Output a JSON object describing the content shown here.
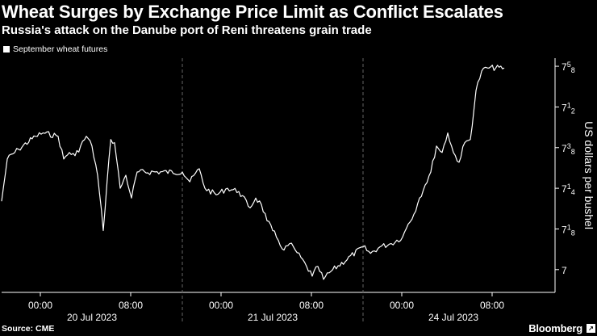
{
  "header": {
    "title": "Wheat Surges by Exchange Price Limit as Conflict Escalates",
    "subtitle": "Russia's attack on the Danube port of Reni threatens grain trade"
  },
  "footer": {
    "source": "Source: CME",
    "brand": "Bloomberg"
  },
  "chart_data": {
    "type": "line",
    "series": [
      {
        "name": "September wheat futures",
        "points": [
          [
            "20 Jul 00:00",
            7.21
          ],
          [
            "20 Jul 00:30",
            7.34
          ],
          [
            "20 Jul 01:30",
            7.37
          ],
          [
            "20 Jul 03:00",
            7.41
          ],
          [
            "20 Jul 03:40",
            7.42
          ],
          [
            "20 Jul 05:00",
            7.41
          ],
          [
            "20 Jul 05:30",
            7.34
          ],
          [
            "20 Jul 06:00",
            7.36
          ],
          [
            "20 Jul 06:30",
            7.35
          ],
          [
            "20 Jul 07:30",
            7.41
          ],
          [
            "20 Jul 08:00",
            7.38
          ],
          [
            "20 Jul 08:30",
            7.29
          ],
          [
            "20 Jul 09:00",
            7.12
          ],
          [
            "20 Jul 09:20",
            7.27
          ],
          [
            "20 Jul 09:40",
            7.4
          ],
          [
            "20 Jul 10:00",
            7.39
          ],
          [
            "20 Jul 10:30",
            7.25
          ],
          [
            "20 Jul 11:00",
            7.29
          ],
          [
            "20 Jul 11:30",
            7.22
          ],
          [
            "20 Jul 12:00",
            7.3
          ],
          [
            "21 Jul 00:00",
            7.3
          ],
          [
            "21 Jul 00:40",
            7.27
          ],
          [
            "21 Jul 01:30",
            7.31
          ],
          [
            "21 Jul 02:00",
            7.25
          ],
          [
            "21 Jul 03:00",
            7.23
          ],
          [
            "21 Jul 04:00",
            7.25
          ],
          [
            "21 Jul 05:00",
            7.24
          ],
          [
            "21 Jul 06:00",
            7.19
          ],
          [
            "21 Jul 06:30",
            7.22
          ],
          [
            "21 Jul 07:00",
            7.2
          ],
          [
            "21 Jul 07:30",
            7.15
          ],
          [
            "21 Jul 08:00",
            7.12
          ],
          [
            "21 Jul 08:30",
            7.09
          ],
          [
            "21 Jul 09:00",
            7.06
          ],
          [
            "21 Jul 09:30",
            7.08
          ],
          [
            "21 Jul 10:00",
            7.06
          ],
          [
            "21 Jul 11:00",
            7.01
          ],
          [
            "21 Jul 11:30",
            6.98
          ],
          [
            "21 Jul 12:00",
            7.01
          ],
          [
            "21 Jul 12:30",
            6.97
          ],
          [
            "21 Jul 13:00",
            6.99
          ],
          [
            "24 Jul 00:00",
            7.07
          ],
          [
            "24 Jul 00:40",
            7.05
          ],
          [
            "24 Jul 01:30",
            7.07
          ],
          [
            "24 Jul 02:30",
            7.08
          ],
          [
            "24 Jul 03:30",
            7.1
          ],
          [
            "24 Jul 04:00",
            7.14
          ],
          [
            "24 Jul 04:30",
            7.17
          ],
          [
            "24 Jul 05:00",
            7.22
          ],
          [
            "24 Jul 05:30",
            7.26
          ],
          [
            "24 Jul 06:00",
            7.3
          ],
          [
            "24 Jul 06:30",
            7.38
          ],
          [
            "24 Jul 07:00",
            7.36
          ],
          [
            "24 Jul 07:30",
            7.42
          ],
          [
            "24 Jul 08:00",
            7.36
          ],
          [
            "24 Jul 08:30",
            7.33
          ],
          [
            "24 Jul 09:00",
            7.39
          ],
          [
            "24 Jul 09:30",
            7.4
          ],
          [
            "24 Jul 10:00",
            7.55
          ],
          [
            "24 Jul 10:30",
            7.61
          ],
          [
            "24 Jul 11:00",
            7.62
          ],
          [
            "24 Jul 12:30",
            7.62
          ]
        ]
      }
    ],
    "x_ticks": [
      "00:00",
      "08:00",
      "00:00",
      "08:00",
      "00:00",
      "08:00"
    ],
    "x_dates": [
      "20 Jul 2023",
      "21 Jul 2023",
      "24 Jul 2023"
    ],
    "y_ticks": [
      {
        "value": 7.0,
        "whole": "7",
        "num": "",
        "den": ""
      },
      {
        "value": 7.125,
        "whole": "7",
        "num": "1",
        "den": "8"
      },
      {
        "value": 7.25,
        "whole": "7",
        "num": "1",
        "den": "4"
      },
      {
        "value": 7.375,
        "whole": "7",
        "num": "3",
        "den": "8"
      },
      {
        "value": 7.5,
        "whole": "7",
        "num": "1",
        "den": "2"
      },
      {
        "value": 7.625,
        "whole": "7",
        "num": "5",
        "den": "8"
      }
    ],
    "ylabel": "US dollars per bushel",
    "ylim": [
      6.93,
      7.65
    ],
    "legend": "top-left",
    "grid": false,
    "colors": {
      "line": "#ffffff",
      "axis": "#ffffff",
      "separator": "#666666"
    }
  }
}
